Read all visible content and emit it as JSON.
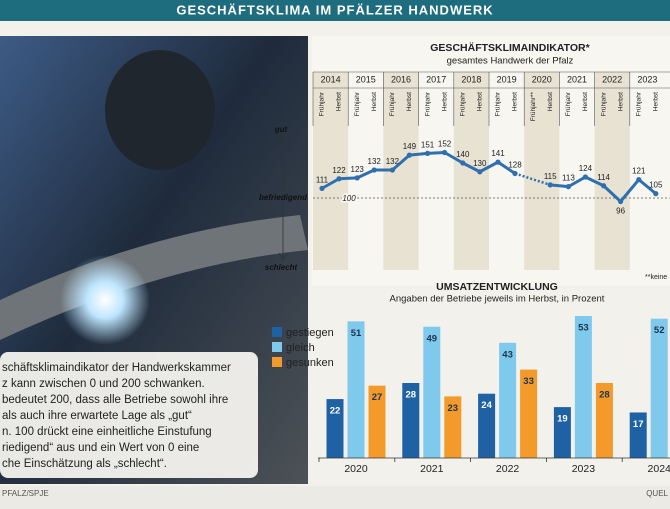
{
  "header": {
    "title": "GESCHÄFTSKLIMA IM PFÄLZER HANDWERK"
  },
  "description": [
    "schäftsklimaindikator der Handwerkskammer",
    "z kann zwischen 0 und 200 schwanken.",
    "bedeutet 200, dass alle Betriebe sowohl ihre",
    "als auch ihre erwartete Lage als „gut“",
    "n. 100 drückt eine einheitliche Einstufung",
    "riedigend“ aus und ein Wert von 0 eine",
    "che Einschätzung als „schlecht“."
  ],
  "footer": {
    "left": "PFALZ/SPJE",
    "right": "QUEL"
  },
  "chart_data": [
    {
      "type": "line",
      "title": "GESCHÄFTSKLIMAINDIKATOR*",
      "subtitle": "gesamtes Handwerk der Pfalz",
      "groups": [
        "2014",
        "2015",
        "2016",
        "2017",
        "2018",
        "2019",
        "2020",
        "2021",
        "2022",
        "2023"
      ],
      "categories": [
        "Frühjahr",
        "Herbst",
        "Frühjahr",
        "Herbst",
        "Frühjahr",
        "Herbst",
        "Frühjahr",
        "Herbst",
        "Frühjahr",
        "Herbst",
        "Frühjahr",
        "Herbst",
        "Frühjahr**",
        "Herbst",
        "Frühjahr",
        "Herbst",
        "Frühjahr",
        "Herbst",
        "Frühjahr",
        "Herbst"
      ],
      "values": [
        111,
        122,
        123,
        132,
        132,
        149,
        151,
        152,
        140,
        130,
        141,
        128,
        null,
        115,
        113,
        124,
        114,
        96,
        121,
        105
      ],
      "color": "#2f6fae",
      "ylim": [
        20,
        180
      ],
      "yticks": [
        100
      ],
      "annotations": [
        "gut",
        "befriedigend",
        "schlecht"
      ],
      "footnote": "**keine"
    },
    {
      "type": "bar",
      "title": "UMSATZENTWICKLUNG",
      "subtitle": "Angaben der Betriebe jeweils im Herbst, in Prozent",
      "categories": [
        "2020",
        "2021",
        "2022",
        "2023",
        "2024"
      ],
      "series": [
        {
          "name": "gestiegen",
          "color": "#1f62a3",
          "values": [
            22,
            28,
            24,
            19,
            17
          ]
        },
        {
          "name": "gleich",
          "color": "#7fc9ec",
          "values": [
            51,
            49,
            43,
            53,
            52
          ]
        },
        {
          "name": "gesunken",
          "color": "#f39a2b",
          "values": [
            27,
            23,
            33,
            28,
            null
          ]
        }
      ],
      "ylim": [
        0,
        56
      ],
      "legend": "left"
    }
  ]
}
